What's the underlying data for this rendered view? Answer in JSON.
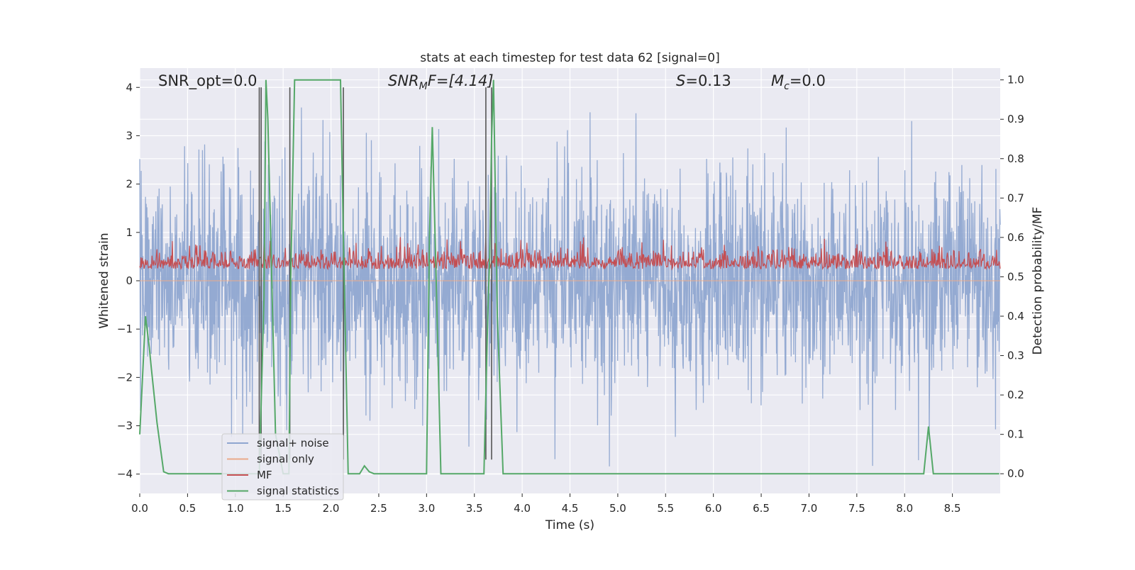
{
  "chart_data": {
    "type": "line",
    "title": "stats at each timestep for test data 62 [signal=0]",
    "xlabel": "Time (s)",
    "ylabel_left": "Whitened strain",
    "ylabel_right": "Detection probability/MF",
    "xlim": [
      0.0,
      9.0
    ],
    "ylim_left": [
      -4.4,
      4.4
    ],
    "ylim_right": [
      -0.05,
      1.03
    ],
    "x_ticks": [
      0.0,
      0.5,
      1.0,
      1.5,
      2.0,
      2.5,
      3.0,
      3.5,
      4.0,
      4.5,
      5.0,
      5.5,
      6.0,
      6.5,
      7.0,
      7.5,
      8.0,
      8.5
    ],
    "x_tick_labels": [
      "0.0",
      "0.5",
      "1.0",
      "1.5",
      "2.0",
      "2.5",
      "3.0",
      "3.5",
      "4.0",
      "4.5",
      "5.0",
      "5.5",
      "6.0",
      "6.5",
      "7.0",
      "7.5",
      "8.0",
      "8.5"
    ],
    "y_ticks_left": [
      -4,
      -3,
      -2,
      -1,
      0,
      1,
      2,
      3,
      4
    ],
    "y_tick_labels_left": [
      "−4",
      "−3",
      "−2",
      "−1",
      "0",
      "1",
      "2",
      "3",
      "4"
    ],
    "y_ticks_right": [
      0.0,
      0.1,
      0.2,
      0.3,
      0.4,
      0.5,
      0.6,
      0.7,
      0.8,
      0.9,
      1.0
    ],
    "y_tick_labels_right": [
      "0.0",
      "0.1",
      "0.2",
      "0.3",
      "0.4",
      "0.5",
      "0.6",
      "0.7",
      "0.8",
      "0.9",
      "1.0"
    ],
    "grid": true,
    "legend_placement": "lower-left",
    "annotations": {
      "snr_opt": "SNR_opt=0.0",
      "snr_mf_main": "SNR",
      "snr_mf_sub": "M",
      "snr_mf_rest": "F=[4.14]",
      "s_main": "S",
      "s_rest": "=0.13",
      "mc_main": "M",
      "mc_sub": "c",
      "mc_rest": "=0.0"
    },
    "series": [
      {
        "name": "signal+ noise",
        "axis": "left",
        "color": "#8fa6d0",
        "kind": "noise",
        "sample_rate_hz": 2048,
        "amplitude_range": [
          -3.9,
          3.6
        ]
      },
      {
        "name": "signal only",
        "axis": "left",
        "color": "#e9a98a",
        "kind": "flat",
        "value": 0.0
      },
      {
        "name": "MF",
        "axis": "right",
        "color": "#c44e52",
        "kind": "noise_band",
        "value_range": [
          0.5,
          0.62
        ]
      },
      {
        "name": "signal statistics",
        "axis": "right",
        "color": "#55a868",
        "kind": "line",
        "x": [
          0.0,
          0.06,
          0.1,
          0.12,
          0.18,
          0.25,
          0.3,
          1.2,
          1.25,
          1.3,
          1.32,
          1.34,
          1.38,
          1.42,
          1.5,
          1.56,
          1.58,
          1.62,
          1.8,
          2.0,
          2.1,
          2.13,
          2.18,
          2.25,
          2.3,
          2.35,
          2.4,
          2.45,
          3.0,
          3.03,
          3.06,
          3.1,
          3.15,
          3.6,
          3.64,
          3.66,
          3.68,
          3.7,
          3.74,
          3.8,
          8.2,
          8.25,
          8.3,
          8.4,
          8.99
        ],
        "y": [
          0.1,
          0.4,
          0.32,
          0.27,
          0.13,
          0.005,
          0.0,
          0.0,
          0.0,
          0.45,
          1.0,
          0.9,
          0.5,
          0.1,
          0.0,
          0.0,
          0.5,
          1.0,
          1.0,
          1.0,
          1.0,
          0.6,
          0.0,
          0.0,
          0.0,
          0.02,
          0.005,
          0.0,
          0.0,
          0.6,
          0.88,
          0.5,
          0.0,
          0.0,
          0.4,
          0.55,
          0.85,
          1.0,
          0.4,
          0.0,
          0.0,
          0.12,
          0.0,
          0.0,
          0.0
        ]
      }
    ],
    "vertical_lines": [
      1.25,
      1.27,
      1.57,
      2.13,
      3.62,
      3.68
    ],
    "vertical_line_color": "#555555"
  }
}
